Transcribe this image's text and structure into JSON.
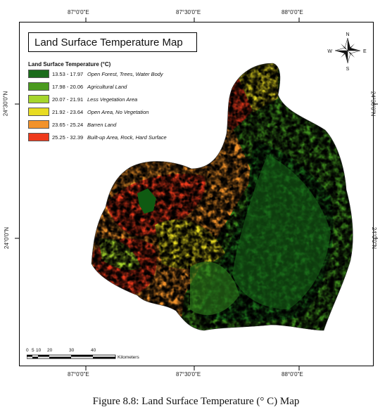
{
  "map": {
    "title": "Land Surface Temperature Map",
    "legend": {
      "title": "Land Surface Temperature (°C)",
      "items": [
        {
          "range": "13.53 - 17.97",
          "label": "Open Forest, Trees, Water Body",
          "color": "#1a6b1a"
        },
        {
          "range": "17.98 - 20.06",
          "label": "Agricultural Land",
          "color": "#4a9a1e"
        },
        {
          "range": "20.07 - 21.91",
          "label": "Less Vegetation Area",
          "color": "#a6d62c"
        },
        {
          "range": "21.92 - 23.64",
          "label": "Open Area, No Vegetation",
          "color": "#e8dc22"
        },
        {
          "range": "23.65 - 25.24",
          "label": "Barren Land",
          "color": "#f2922a"
        },
        {
          "range": "25.25 - 32.39",
          "label": "Built-up Area, Rock, Hard Surface",
          "color": "#ee3a1c"
        }
      ]
    },
    "ticks": {
      "top": [
        "87°0'0\"E",
        "87°30'0\"E",
        "88°0'0\"E"
      ],
      "bottom": [
        "87°0'0\"E",
        "87°30'0\"E",
        "88°0'0\"E"
      ],
      "left": [
        "24°30'0\"N",
        "24°0'0\"N"
      ],
      "right": [
        "24°30'0\"N",
        "24°0'0\"N"
      ]
    },
    "north_arrow": {
      "n": "N",
      "s": "S",
      "e": "E",
      "w": "W"
    },
    "scalebar": {
      "labels": [
        "0",
        "5",
        "10",
        "20",
        "30",
        "40"
      ],
      "unit": "Kilometers"
    }
  },
  "caption": "Figure 8.8: Land Surface Temperature (° C) Map"
}
